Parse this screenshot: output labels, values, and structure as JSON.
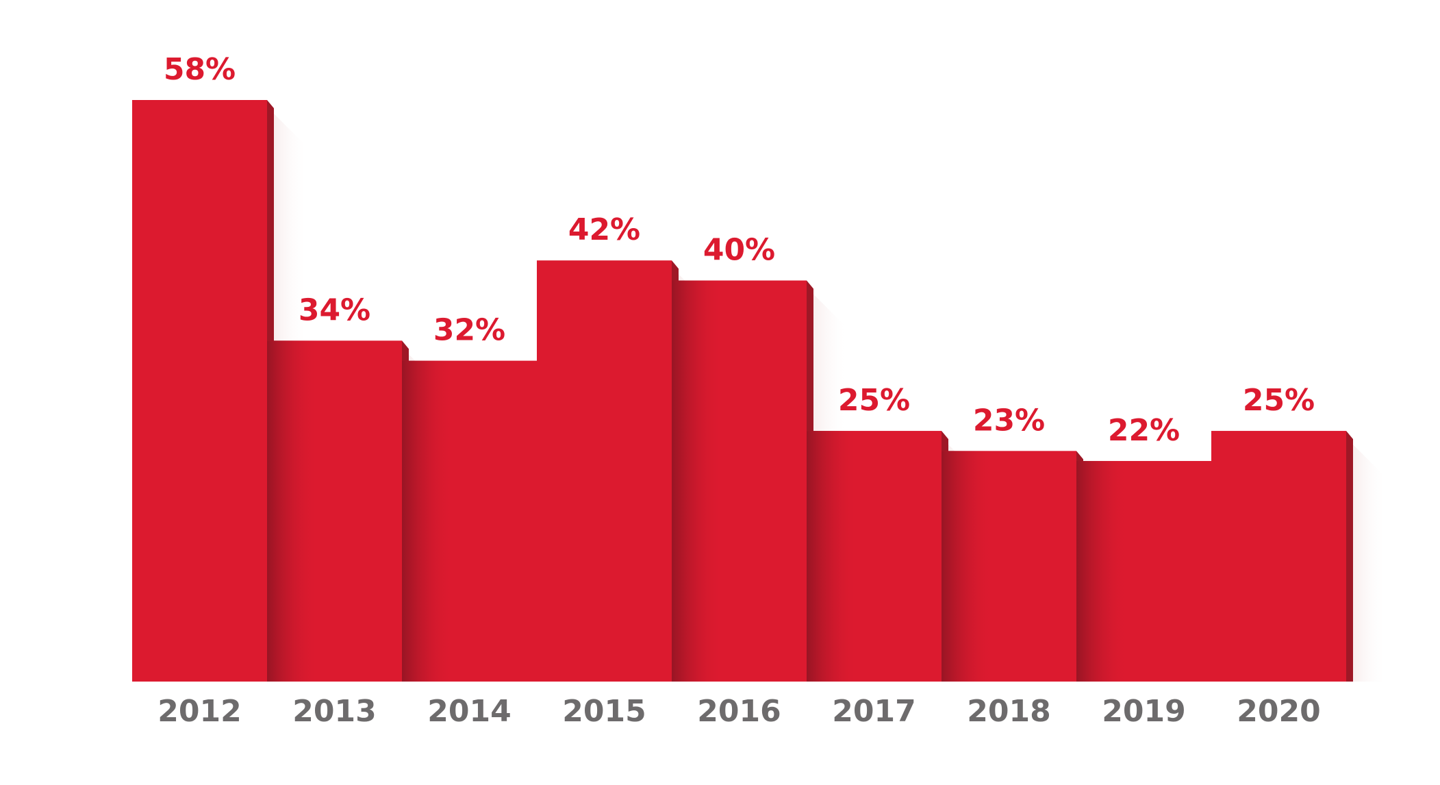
{
  "chart_data": {
    "type": "bar",
    "categories": [
      "2012",
      "2013",
      "2014",
      "2015",
      "2016",
      "2017",
      "2018",
      "2019",
      "2020"
    ],
    "values": [
      58,
      34,
      32,
      42,
      40,
      25,
      23,
      22,
      25
    ],
    "value_labels": [
      "58%",
      "34%",
      "32%",
      "42%",
      "40%",
      "25%",
      "23%",
      "22%",
      "25%"
    ],
    "title": "",
    "xlabel": "",
    "ylabel": "",
    "ylim": [
      0,
      58
    ],
    "grid": false,
    "legend": "none",
    "colors": {
      "bar": "#dc1a2f",
      "bar_shade": "#9e1826",
      "value_label": "#dc1a2f",
      "tick_label": "#6d6b6c"
    }
  }
}
